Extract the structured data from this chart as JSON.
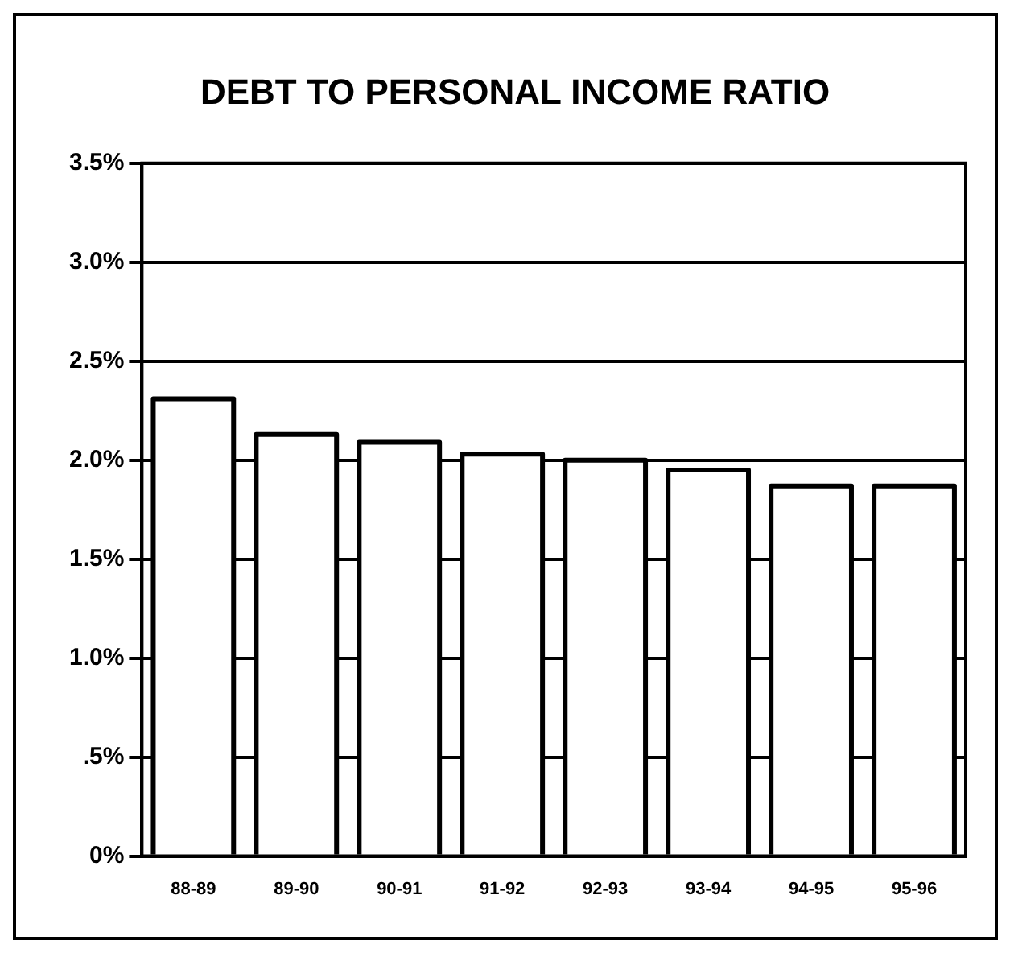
{
  "chart_data": {
    "type": "bar",
    "title": "DEBT TO PERSONAL INCOME RATIO",
    "categories": [
      "88-89",
      "89-90",
      "90-91",
      "91-92",
      "92-93",
      "93-94",
      "94-95",
      "95-96"
    ],
    "values": [
      2.31,
      2.13,
      2.09,
      2.03,
      2.0,
      1.95,
      1.87,
      1.87
    ],
    "color": "#ffffff",
    "ylim": [
      0,
      3.5
    ],
    "yticks": [
      {
        "value": 0,
        "label": "0%"
      },
      {
        "value": 0.5,
        "label": ".5%"
      },
      {
        "value": 1,
        "label": "1.0%"
      },
      {
        "value": 1.5,
        "label": "1.5%"
      },
      {
        "value": 2,
        "label": "2.0%"
      },
      {
        "value": 2.5,
        "label": "2.5%"
      },
      {
        "value": 3,
        "label": "3.0%"
      },
      {
        "value": 3.5,
        "label": "3.5%"
      }
    ],
    "grid": "y"
  }
}
